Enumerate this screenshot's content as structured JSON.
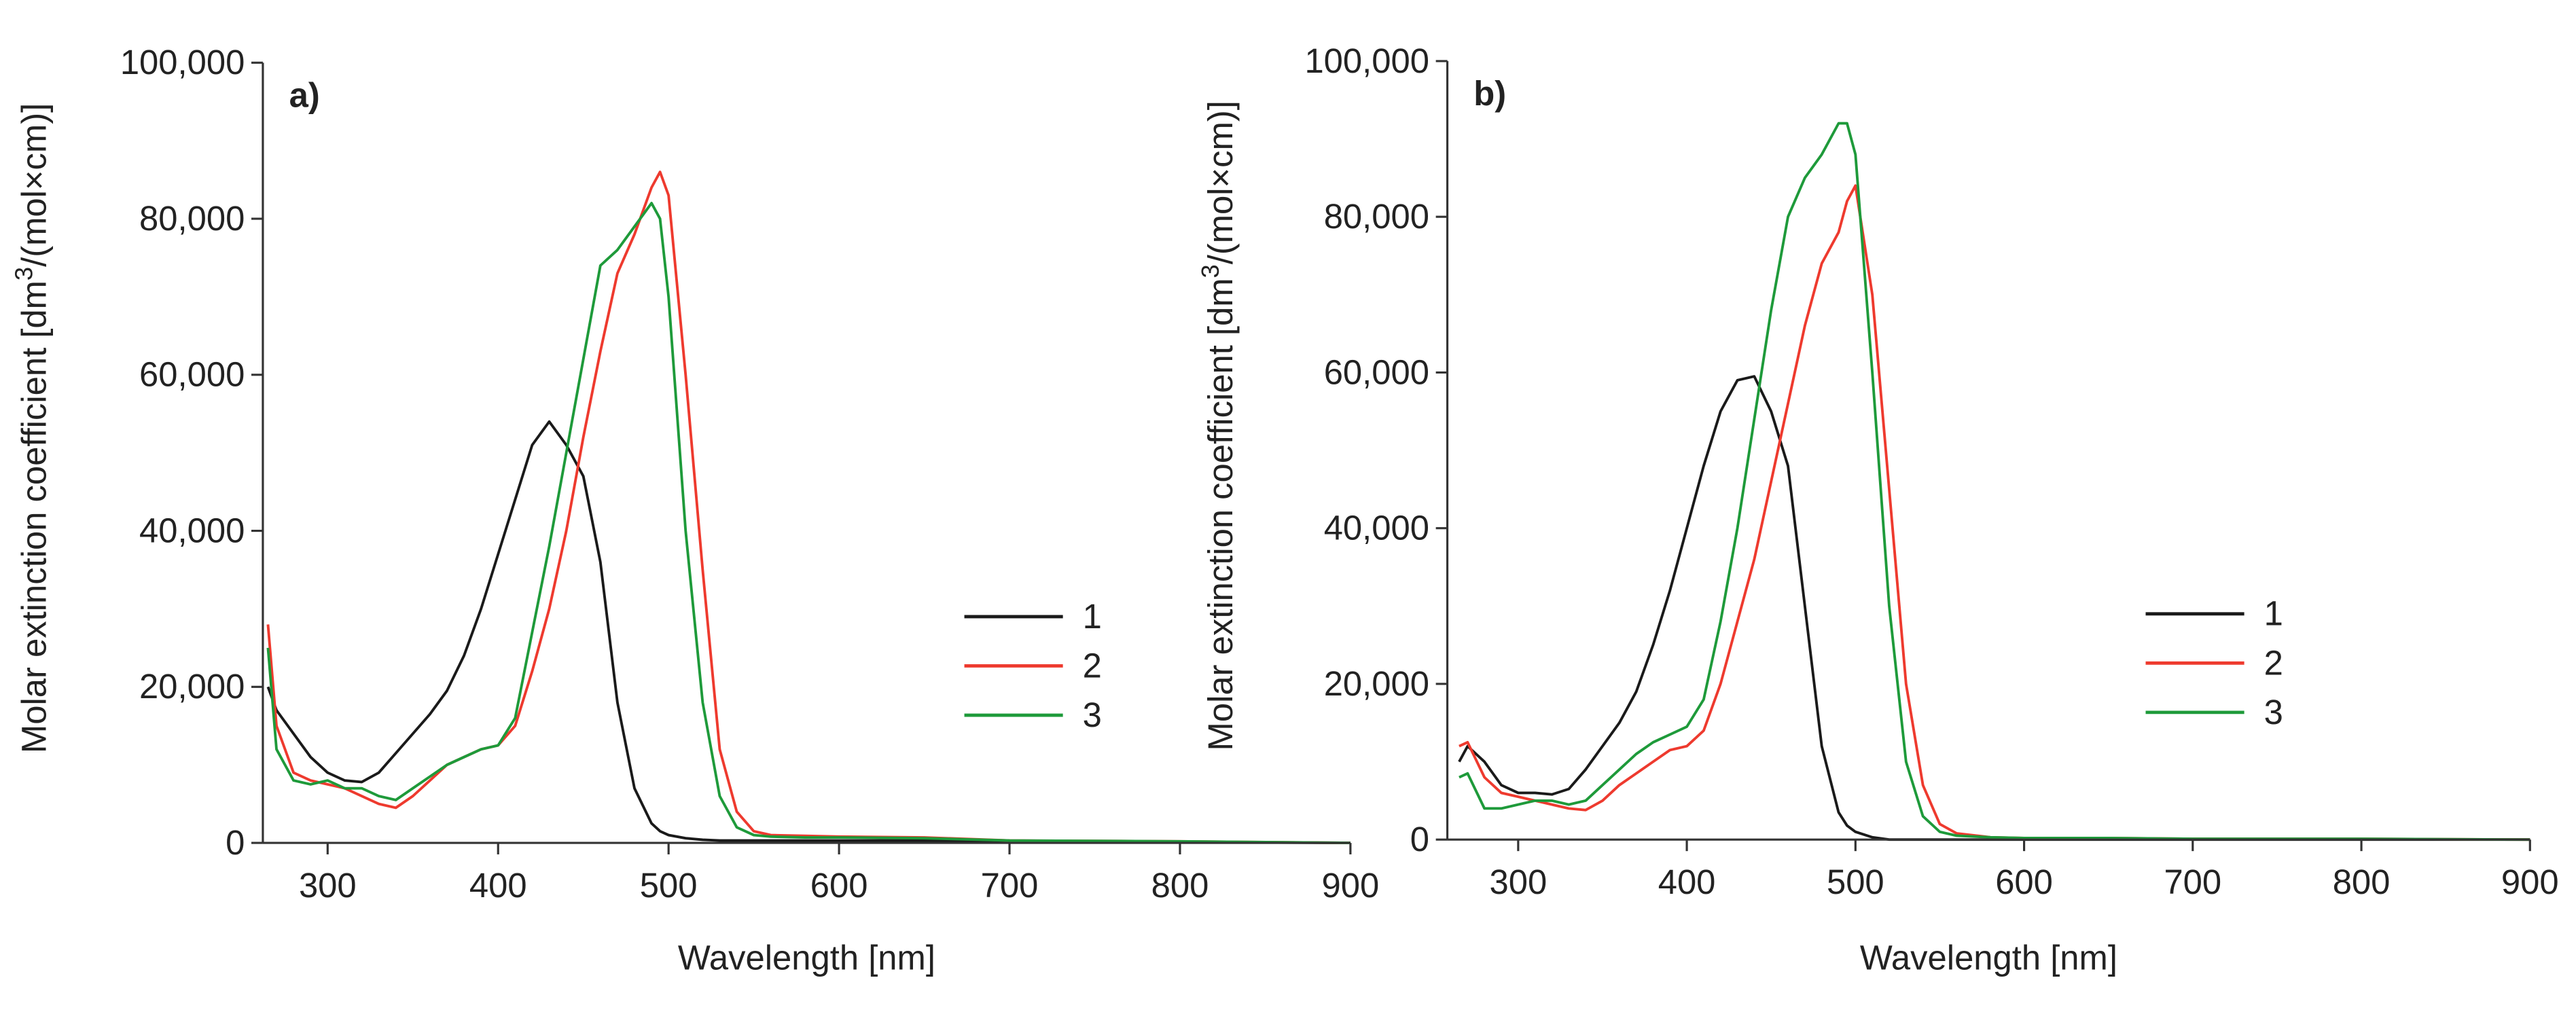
{
  "chart_data": [
    {
      "type": "line",
      "annotation": "a)",
      "x_label": "Wavelength [nm]",
      "y_label": [
        "Molar extinction coefficient [dm",
        "3",
        "/(mol×cm)]"
      ],
      "xlim": [
        262,
        900
      ],
      "ylim": [
        0,
        100000
      ],
      "xticks": [
        300,
        400,
        500,
        600,
        700,
        800,
        900
      ],
      "yticks": [
        0,
        {
          "value": 20000,
          "label": "20,000"
        },
        {
          "value": 40000,
          "label": "40,000"
        },
        {
          "value": 60000,
          "label": "60,000"
        },
        {
          "value": 80000,
          "label": "80,000"
        },
        {
          "value": 100000,
          "label": "100,000"
        }
      ],
      "legend": "center right",
      "x": [
        265,
        270,
        280,
        290,
        300,
        310,
        320,
        330,
        340,
        350,
        360,
        370,
        380,
        390,
        400,
        410,
        420,
        430,
        440,
        450,
        460,
        470,
        480,
        490,
        495,
        500,
        510,
        520,
        530,
        540,
        550,
        560,
        580,
        600,
        650,
        700,
        800,
        900
      ],
      "series": [
        {
          "name": "1",
          "color": "#1a1a1a",
          "values": [
            20000,
            17000,
            14000,
            11000,
            9000,
            8000,
            7800,
            9000,
            11500,
            14000,
            16500,
            19500,
            24000,
            30000,
            37000,
            44000,
            51000,
            54000,
            51000,
            47000,
            36000,
            18000,
            7000,
            2500,
            1500,
            1000,
            600,
            400,
            300,
            300,
            300,
            300,
            300,
            300,
            300,
            200,
            100,
            0
          ]
        },
        {
          "name": "2",
          "color": "#ee3a2e",
          "values": [
            28000,
            15000,
            9000,
            8000,
            7500,
            7000,
            6000,
            5000,
            4500,
            6000,
            8000,
            10000,
            11000,
            12000,
            12500,
            15000,
            22000,
            30000,
            40000,
            52000,
            63000,
            73000,
            78000,
            84000,
            86000,
            83000,
            60000,
            35000,
            12000,
            4000,
            1500,
            1000,
            900,
            800,
            700,
            300,
            200,
            0
          ]
        },
        {
          "name": "3",
          "color": "#1e9a3a",
          "values": [
            25000,
            12000,
            8000,
            7500,
            8000,
            7000,
            7000,
            6000,
            5500,
            7000,
            8500,
            10000,
            11000,
            12000,
            12500,
            16000,
            27000,
            38000,
            50000,
            62000,
            74000,
            76000,
            79000,
            82000,
            80000,
            70000,
            40000,
            18000,
            6000,
            2000,
            1000,
            800,
            700,
            700,
            600,
            300,
            200,
            0
          ]
        }
      ]
    },
    {
      "type": "line",
      "annotation": "b)",
      "x_label": "Wavelength [nm]",
      "y_label": [
        "Molar extinction coefficient [dm",
        "3",
        "/(mol×cm)]"
      ],
      "xlim": [
        258,
        900
      ],
      "ylim": [
        0,
        100000
      ],
      "xticks": [
        300,
        400,
        500,
        600,
        700,
        800,
        900
      ],
      "yticks": [
        0,
        {
          "value": 20000,
          "label": "20,000"
        },
        {
          "value": 40000,
          "label": "40,000"
        },
        {
          "value": 60000,
          "label": "60,000"
        },
        {
          "value": 80000,
          "label": "80,000"
        },
        {
          "value": 100000,
          "label": "100,000"
        }
      ],
      "legend": "center right",
      "x": [
        265,
        270,
        280,
        290,
        300,
        310,
        320,
        330,
        340,
        350,
        360,
        370,
        380,
        390,
        400,
        410,
        420,
        430,
        440,
        450,
        460,
        470,
        480,
        490,
        495,
        500,
        510,
        520,
        530,
        540,
        550,
        560,
        580,
        600,
        650,
        700,
        800,
        900
      ],
      "series": [
        {
          "name": "1",
          "color": "#1a1a1a",
          "values": [
            10000,
            12000,
            10000,
            7000,
            6000,
            6000,
            5800,
            6500,
            9000,
            12000,
            15000,
            19000,
            25000,
            32000,
            40000,
            48000,
            55000,
            59000,
            59500,
            55000,
            48000,
            30000,
            12000,
            3500,
            1800,
            1000,
            300,
            0,
            0,
            0,
            0,
            0,
            0,
            0,
            0,
            0,
            0,
            0
          ]
        },
        {
          "name": "2",
          "color": "#ee3a2e",
          "values": [
            12000,
            12500,
            8000,
            6000,
            5500,
            5000,
            4500,
            4000,
            3800,
            5000,
            7000,
            8500,
            10000,
            11500,
            12000,
            14000,
            20000,
            28000,
            36000,
            46000,
            56000,
            66000,
            74000,
            78000,
            82000,
            84000,
            70000,
            45000,
            20000,
            7000,
            2000,
            800,
            300,
            200,
            200,
            100,
            100,
            0
          ]
        },
        {
          "name": "3",
          "color": "#1e9a3a",
          "values": [
            8000,
            8500,
            4000,
            4000,
            4500,
            5000,
            5000,
            4500,
            5000,
            7000,
            9000,
            11000,
            12500,
            13500,
            14500,
            18000,
            28000,
            40000,
            54000,
            68000,
            80000,
            85000,
            88000,
            92000,
            92000,
            88000,
            60000,
            30000,
            10000,
            3000,
            1000,
            500,
            300,
            200,
            200,
            100,
            100,
            0
          ]
        }
      ]
    }
  ]
}
